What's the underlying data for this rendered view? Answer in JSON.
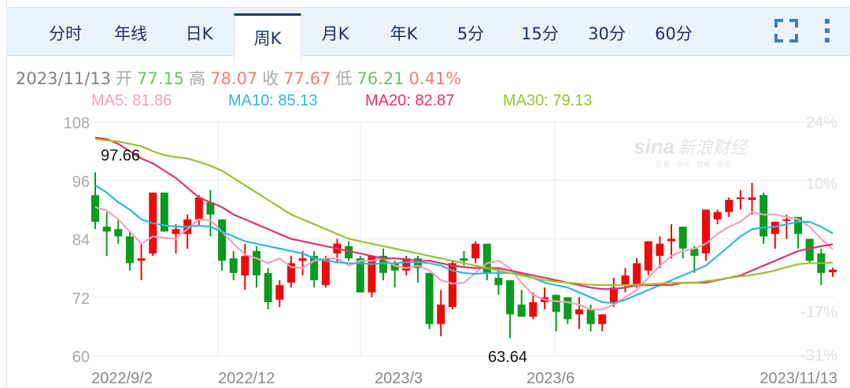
{
  "tabs": [
    {
      "label": "分时",
      "active": false
    },
    {
      "label": "年线",
      "active": false
    },
    {
      "label": "日K",
      "active": false
    },
    {
      "label": "周K",
      "active": true
    },
    {
      "label": "月K",
      "active": false
    },
    {
      "label": "年K",
      "active": false
    },
    {
      "label": "5分",
      "active": false
    },
    {
      "label": "15分",
      "active": false
    },
    {
      "label": "30分",
      "active": false
    },
    {
      "label": "60分",
      "active": false
    }
  ],
  "toolbar": {
    "fullscreen_icon": "fullscreen-icon",
    "more_icon": "more-vertical-icon"
  },
  "quote": {
    "date": "2023/11/13",
    "open_label": "开",
    "open": "77.15",
    "high_label": "高",
    "high": "78.07",
    "close_label": "收",
    "close": "77.67",
    "low_label": "低",
    "low": "76.21",
    "change_pct": "0.41%"
  },
  "ma": {
    "ma5": "MA5: 81.86",
    "ma10": "MA10: 85.13",
    "ma20": "MA20: 82.87",
    "ma30": "MA30: 79.13"
  },
  "colors": {
    "up": "#ee0a0a",
    "down": "#0a9a1f",
    "ma5": "#f4a0c0",
    "ma10": "#2dbad6",
    "ma20": "#e0336f",
    "ma30": "#9bc132",
    "quote_green": "#6fc26b",
    "quote_red": "#ec7f77",
    "axis_text": "#a9a9a9",
    "pct_text": "#e2e2e2",
    "tab_active_border": "#1d3a72"
  },
  "watermark": {
    "brand": "sina",
    "cn": "新浪财经",
    "sub": "交易 · 资讯 · 数据 · 投资"
  },
  "annotations": {
    "max_label": "97.66",
    "min_label": "63.64"
  },
  "chart_data": {
    "type": "candlestick",
    "title": "周K",
    "period": "weekly",
    "xlabel": "",
    "ylabel": "",
    "ylim": [
      60,
      108
    ],
    "y_ticks": [
      "108",
      "96",
      "84",
      "72",
      "60"
    ],
    "y_ticks_right": [
      "24%",
      "10%",
      "-17%",
      "-31%"
    ],
    "x_ticks": [
      "2022/9/2",
      "2022/12",
      "2023/3",
      "2023/6",
      "2023/11/13"
    ],
    "grid": true,
    "max_annotation": {
      "value": 97.66,
      "label": "97.66"
    },
    "min_annotation": {
      "value": 63.64,
      "label": "63.64"
    },
    "last_bar": {
      "date": "2023/11/13",
      "open": 77.15,
      "high": 78.07,
      "close": 77.67,
      "low": 76.21,
      "change_pct": 0.41
    },
    "legend": [
      "MA5: 81.86",
      "MA10: 85.13",
      "MA20: 82.87",
      "MA30: 79.13"
    ],
    "candles": [
      {
        "o": 93.0,
        "c": 87.5,
        "h": 97.66,
        "l": 86.0
      },
      {
        "o": 86.5,
        "c": 85.5,
        "h": 89.5,
        "l": 80.5
      },
      {
        "o": 86.0,
        "c": 84.5,
        "h": 88.0,
        "l": 83.0
      },
      {
        "o": 84.5,
        "c": 79.0,
        "h": 85.5,
        "l": 77.5
      },
      {
        "o": 79.5,
        "c": 80.0,
        "h": 83.0,
        "l": 75.5
      },
      {
        "o": 81.0,
        "c": 93.5,
        "h": 93.5,
        "l": 80.5
      },
      {
        "o": 93.5,
        "c": 85.5,
        "h": 93.5,
        "l": 85.5
      },
      {
        "o": 85.0,
        "c": 86.0,
        "h": 87.0,
        "l": 81.0
      },
      {
        "o": 85.0,
        "c": 88.0,
        "h": 89.0,
        "l": 82.0
      },
      {
        "o": 88.0,
        "c": 92.5,
        "h": 93.0,
        "l": 86.5
      },
      {
        "o": 91.5,
        "c": 89.0,
        "h": 94.0,
        "l": 84.5
      },
      {
        "o": 88.0,
        "c": 79.5,
        "h": 88.0,
        "l": 77.5
      },
      {
        "o": 80.0,
        "c": 77.0,
        "h": 81.5,
        "l": 75.5
      },
      {
        "o": 76.5,
        "c": 80.5,
        "h": 83.0,
        "l": 73.5
      },
      {
        "o": 81.5,
        "c": 76.5,
        "h": 82.5,
        "l": 74.0
      },
      {
        "o": 77.0,
        "c": 71.0,
        "h": 78.0,
        "l": 69.5
      },
      {
        "o": 71.5,
        "c": 74.5,
        "h": 75.5,
        "l": 70.0
      },
      {
        "o": 75.0,
        "c": 79.0,
        "h": 80.5,
        "l": 74.0
      },
      {
        "o": 79.5,
        "c": 80.0,
        "h": 81.5,
        "l": 76.5
      },
      {
        "o": 80.5,
        "c": 75.5,
        "h": 81.5,
        "l": 74.0
      },
      {
        "o": 74.5,
        "c": 80.0,
        "h": 80.5,
        "l": 74.0
      },
      {
        "o": 81.0,
        "c": 83.0,
        "h": 84.0,
        "l": 79.0
      },
      {
        "o": 82.5,
        "c": 80.0,
        "h": 83.5,
        "l": 79.5
      },
      {
        "o": 80.0,
        "c": 73.0,
        "h": 80.5,
        "l": 73.0
      },
      {
        "o": 73.0,
        "c": 80.5,
        "h": 80.5,
        "l": 72.0
      },
      {
        "o": 80.5,
        "c": 77.0,
        "h": 82.0,
        "l": 75.5
      },
      {
        "o": 79.0,
        "c": 77.5,
        "h": 79.5,
        "l": 74.0
      },
      {
        "o": 77.5,
        "c": 80.0,
        "h": 80.5,
        "l": 76.5
      },
      {
        "o": 80.0,
        "c": 78.0,
        "h": 80.5,
        "l": 75.0
      },
      {
        "o": 77.0,
        "c": 66.5,
        "h": 77.0,
        "l": 65.5
      },
      {
        "o": 66.5,
        "c": 70.5,
        "h": 73.5,
        "l": 64.0
      },
      {
        "o": 70.0,
        "c": 79.0,
        "h": 79.5,
        "l": 69.5
      },
      {
        "o": 80.0,
        "c": 79.5,
        "h": 81.5,
        "l": 78.5
      },
      {
        "o": 80.0,
        "c": 83.0,
        "h": 83.5,
        "l": 79.0
      },
      {
        "o": 83.0,
        "c": 77.0,
        "h": 83.0,
        "l": 75.5
      },
      {
        "o": 76.0,
        "c": 74.5,
        "h": 78.0,
        "l": 72.5
      },
      {
        "o": 75.5,
        "c": 68.5,
        "h": 75.5,
        "l": 63.64
      },
      {
        "o": 70.5,
        "c": 68.0,
        "h": 73.5,
        "l": 68.0
      },
      {
        "o": 68.0,
        "c": 71.0,
        "h": 73.0,
        "l": 67.5
      },
      {
        "o": 71.0,
        "c": 72.0,
        "h": 74.0,
        "l": 69.5
      },
      {
        "o": 72.5,
        "c": 69.0,
        "h": 72.5,
        "l": 65.0
      },
      {
        "o": 72.0,
        "c": 67.5,
        "h": 72.0,
        "l": 66.5
      },
      {
        "o": 68.5,
        "c": 69.5,
        "h": 72.0,
        "l": 65.5
      },
      {
        "o": 69.5,
        "c": 66.5,
        "h": 70.5,
        "l": 65.0
      },
      {
        "o": 66.5,
        "c": 68.5,
        "h": 68.5,
        "l": 65.0
      },
      {
        "o": 71.0,
        "c": 74.0,
        "h": 76.0,
        "l": 70.0
      },
      {
        "o": 74.5,
        "c": 76.5,
        "h": 78.0,
        "l": 73.0
      },
      {
        "o": 74.5,
        "c": 79.0,
        "h": 80.0,
        "l": 74.0
      },
      {
        "o": 77.5,
        "c": 83.5,
        "h": 83.5,
        "l": 76.5
      },
      {
        "o": 80.5,
        "c": 83.0,
        "h": 84.5,
        "l": 78.0
      },
      {
        "o": 83.5,
        "c": 84.0,
        "h": 87.0,
        "l": 80.0
      },
      {
        "o": 86.5,
        "c": 82.0,
        "h": 86.5,
        "l": 80.0
      },
      {
        "o": 82.0,
        "c": 80.5,
        "h": 82.5,
        "l": 77.0
      },
      {
        "o": 81.0,
        "c": 90.0,
        "h": 90.0,
        "l": 79.5
      },
      {
        "o": 88.0,
        "c": 89.5,
        "h": 90.0,
        "l": 87.0
      },
      {
        "o": 89.5,
        "c": 92.0,
        "h": 92.5,
        "l": 88.5
      },
      {
        "o": 92.5,
        "c": 92.5,
        "h": 94.0,
        "l": 90.0
      },
      {
        "o": 92.0,
        "c": 92.5,
        "h": 95.5,
        "l": 89.0
      },
      {
        "o": 93.0,
        "c": 84.5,
        "h": 93.5,
        "l": 83.0
      },
      {
        "o": 85.0,
        "c": 87.5,
        "h": 87.5,
        "l": 82.0
      },
      {
        "o": 88.0,
        "c": 88.0,
        "h": 89.0,
        "l": 84.0
      },
      {
        "o": 88.5,
        "c": 85.0,
        "h": 88.5,
        "l": 82.0
      },
      {
        "o": 84.0,
        "c": 79.5,
        "h": 84.0,
        "l": 79.0
      },
      {
        "o": 81.0,
        "c": 77.0,
        "h": 82.0,
        "l": 74.5
      },
      {
        "o": 77.15,
        "c": 77.67,
        "h": 78.07,
        "l": 76.21
      }
    ],
    "series": [
      {
        "name": "MA5",
        "values": [
          90.5,
          89.8,
          88.0,
          85.5,
          83.0,
          84.5,
          84.2,
          84.0,
          86.0,
          88.0,
          87.8,
          85.5,
          83.0,
          80.8,
          80.0,
          79.0,
          80.0,
          78.2,
          78.0,
          79.5,
          80.0,
          80.0,
          78.5,
          79.5,
          79.5,
          80.0,
          78.5,
          78.0,
          78.5,
          77.5,
          75.5,
          74.8,
          75.0,
          77.0,
          79.0,
          79.5,
          78.0,
          75.0,
          72.5,
          71.5,
          71.2,
          71.0,
          70.5,
          69.5,
          69.5,
          70.5,
          72.0,
          73.5,
          76.0,
          78.5,
          80.5,
          81.5,
          82.0,
          83.0,
          85.0,
          86.5,
          87.5,
          89.5,
          89.0,
          89.0,
          88.5,
          88.0,
          86.5,
          84.0,
          81.86
        ]
      },
      {
        "name": "MA10",
        "values": [
          95.0,
          93.5,
          91.5,
          90.0,
          88.0,
          87.2,
          86.8,
          86.5,
          86.5,
          86.7,
          86.5,
          85.5,
          84.5,
          83.5,
          83.0,
          82.5,
          82.0,
          81.5,
          81.0,
          80.0,
          79.5,
          79.2,
          79.0,
          79.0,
          78.8,
          79.0,
          79.0,
          79.2,
          79.2,
          79.0,
          78.5,
          77.5,
          77.0,
          76.8,
          77.0,
          77.0,
          77.0,
          76.8,
          76.0,
          75.0,
          74.5,
          74.0,
          73.0,
          72.0,
          71.0,
          70.8,
          71.5,
          72.5,
          73.5,
          74.5,
          75.5,
          76.5,
          77.5,
          78.5,
          80.5,
          82.5,
          84.5,
          86.0,
          86.3,
          86.5,
          87.0,
          87.5,
          87.5,
          86.5,
          85.13
        ]
      },
      {
        "name": "MA20",
        "values": [
          104.8,
          104.5,
          103.5,
          102.0,
          100.5,
          99.5,
          98.0,
          96.5,
          94.5,
          92.5,
          91.5,
          90.5,
          89.0,
          88.0,
          87.0,
          86.0,
          85.0,
          84.0,
          83.5,
          83.0,
          82.5,
          82.0,
          81.5,
          81.0,
          80.5,
          80.0,
          80.0,
          79.8,
          79.5,
          79.5,
          79.0,
          78.5,
          78.2,
          78.0,
          78.0,
          78.0,
          77.5,
          77.0,
          76.5,
          76.0,
          75.5,
          75.0,
          74.5,
          74.0,
          73.7,
          73.7,
          74.0,
          74.5,
          74.5,
          74.5,
          74.5,
          75.0,
          75.0,
          75.0,
          75.5,
          76.0,
          76.5,
          77.5,
          78.5,
          79.5,
          80.5,
          81.5,
          82.0,
          82.5,
          82.87
        ]
      },
      {
        "name": "MA30",
        "values": [
          104.5,
          104.2,
          104.0,
          103.5,
          103.0,
          102.0,
          101.2,
          100.8,
          100.5,
          99.8,
          99.0,
          98.0,
          96.5,
          95.0,
          93.5,
          92.0,
          90.5,
          89.0,
          88.0,
          87.0,
          86.0,
          85.0,
          84.0,
          83.5,
          83.0,
          82.5,
          82.0,
          81.5,
          81.0,
          80.5,
          80.0,
          79.5,
          79.0,
          78.5,
          78.0,
          77.5,
          77.0,
          76.5,
          76.0,
          75.5,
          75.2,
          75.0,
          74.8,
          74.6,
          74.5,
          74.5,
          74.5,
          74.6,
          74.7,
          74.8,
          75.0,
          75.0,
          75.0,
          75.3,
          75.6,
          76.0,
          76.3,
          76.6,
          77.0,
          77.5,
          78.2,
          78.8,
          79.0,
          79.0,
          79.13
        ]
      }
    ]
  }
}
